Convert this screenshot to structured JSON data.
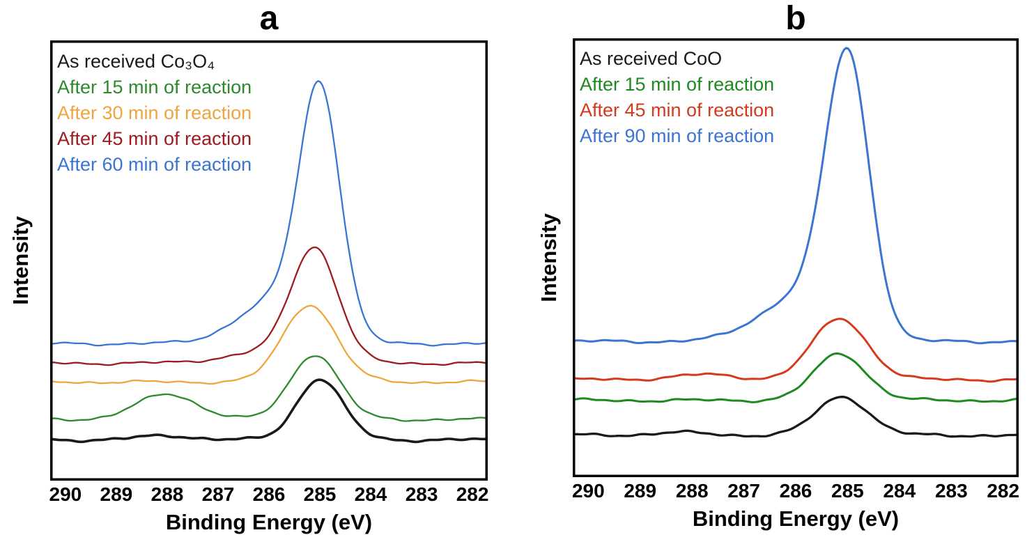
{
  "figure": {
    "background": "#ffffff",
    "panel_count": 2
  },
  "chart_data": [
    {
      "type": "line",
      "panel_label": "a",
      "xlabel": "Binding Energy (eV)",
      "ylabel": "Intensity",
      "x_ticks": [
        290,
        289,
        288,
        287,
        286,
        285,
        284,
        283,
        282
      ],
      "x_axis_reversed": true,
      "x_plot_range": [
        290.3,
        281.7
      ],
      "y_range": [
        0,
        10.8
      ],
      "y_axis_labeled": false,
      "grid": false,
      "legend_position": "top-left",
      "series": [
        {
          "name": "As received Co₃O₄",
          "color": "#1a1a1a",
          "line_width": 3.6,
          "baseline": 1.0,
          "peaks": [
            {
              "center": 285.0,
              "height": 1.5,
              "width": 0.45
            },
            {
              "center": 288.0,
              "height": 0.1,
              "width": 0.55
            }
          ],
          "peak_position_eV": 285.0,
          "seed": 1
        },
        {
          "name": "After 15 min of reaction",
          "color": "#2d8a2d",
          "line_width": 2.3,
          "baseline": 1.5,
          "peaks": [
            {
              "center": 285.1,
              "height": 1.6,
              "width": 0.48
            },
            {
              "center": 288.0,
              "height": 0.62,
              "width": 0.6
            }
          ],
          "peak_position_eV": 285.1,
          "seed": 2
        },
        {
          "name": "After 30 min of reaction",
          "color": "#efa63f",
          "line_width": 2.3,
          "baseline": 2.42,
          "peaks": [
            {
              "center": 285.2,
              "height": 1.9,
              "width": 0.52
            }
          ],
          "peak_position_eV": 285.2,
          "seed": 3
        },
        {
          "name": "After 45 min of reaction",
          "color": "#9e1c20",
          "line_width": 2.3,
          "baseline": 2.88,
          "peaks": [
            {
              "center": 285.1,
              "height": 2.75,
              "width": 0.46
            },
            {
              "center": 286.1,
              "height": 0.25,
              "width": 0.8
            }
          ],
          "peak_position_eV": 285.1,
          "seed": 4
        },
        {
          "name": "After 60 min of reaction",
          "color": "#3a75d4",
          "line_width": 2.3,
          "baseline": 3.36,
          "peaks": [
            {
              "center": 285.0,
              "height": 5.9,
              "width": 0.4
            },
            {
              "center": 285.85,
              "height": 1.05,
              "width": 0.75
            }
          ],
          "peak_position_eV": 285.0,
          "seed": 5
        }
      ]
    },
    {
      "type": "line",
      "panel_label": "b",
      "xlabel": "Binding Energy (eV)",
      "ylabel": "Intensity",
      "x_ticks": [
        290,
        289,
        288,
        287,
        286,
        285,
        284,
        283,
        282
      ],
      "x_axis_reversed": true,
      "x_plot_range": [
        290.3,
        281.7
      ],
      "y_range": [
        0,
        10.8
      ],
      "y_axis_labeled": false,
      "grid": false,
      "legend_position": "top-left",
      "series": [
        {
          "name": "As received CoO",
          "color": "#1a1a1a",
          "line_width": 3.3,
          "baseline": 1.03,
          "peaks": [
            {
              "center": 285.1,
              "height": 0.95,
              "width": 0.5
            },
            {
              "center": 288.3,
              "height": 0.07,
              "width": 0.5
            }
          ],
          "peak_position_eV": 285.1,
          "seed": 6
        },
        {
          "name": "After 15 min of reaction",
          "color": "#1f8a1f",
          "line_width": 3.0,
          "baseline": 1.89,
          "peaks": [
            {
              "center": 285.15,
              "height": 1.15,
              "width": 0.5
            }
          ],
          "peak_position_eV": 285.15,
          "seed": 7
        },
        {
          "name": "After 45 min of reaction",
          "color": "#d63a1c",
          "line_width": 3.0,
          "baseline": 2.4,
          "peaks": [
            {
              "center": 285.15,
              "height": 1.5,
              "width": 0.53
            },
            {
              "center": 287.8,
              "height": 0.12,
              "width": 0.6
            }
          ],
          "peak_position_eV": 285.15,
          "seed": 8
        },
        {
          "name": "After 90 min of reaction",
          "color": "#3a75d4",
          "line_width": 3.0,
          "baseline": 3.34,
          "peaks": [
            {
              "center": 285.0,
              "height": 6.65,
              "width": 0.42
            },
            {
              "center": 285.9,
              "height": 1.1,
              "width": 0.78
            }
          ],
          "peak_position_eV": 285.0,
          "seed": 9
        }
      ]
    }
  ]
}
